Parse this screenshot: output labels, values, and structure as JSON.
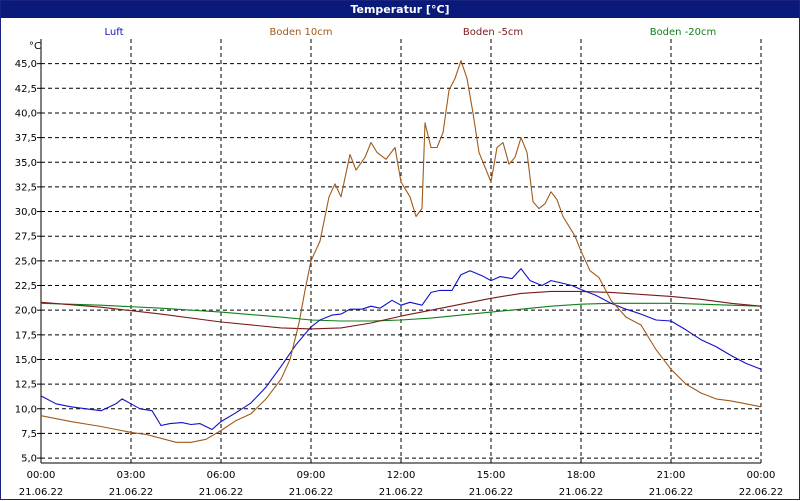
{
  "window": {
    "title": "Temperatur [°C]"
  },
  "chart_data": {
    "type": "line",
    "title": "Temperatur [°C]",
    "ylabel": "°C",
    "xlabel": "",
    "ylim": [
      4.5,
      47.5
    ],
    "xlim": [
      0,
      24
    ],
    "grid": true,
    "legend_position": "top",
    "y_ticks": [
      "5,0",
      "7,5",
      "10,0",
      "12,5",
      "15,0",
      "17,5",
      "20,0",
      "22,5",
      "25,0",
      "27,5",
      "30,0",
      "32,5",
      "35,0",
      "37,5",
      "40,0",
      "42,5",
      "45,0"
    ],
    "x_ticks": [
      {
        "time": "00:00",
        "date": "21.06.22"
      },
      {
        "time": "03:00",
        "date": "21.06.22"
      },
      {
        "time": "06:00",
        "date": "21.06.22"
      },
      {
        "time": "09:00",
        "date": "21.06.22"
      },
      {
        "time": "12:00",
        "date": "21.06.22"
      },
      {
        "time": "15:00",
        "date": "21.06.22"
      },
      {
        "time": "18:00",
        "date": "21.06.22"
      },
      {
        "time": "21:00",
        "date": "21.06.22"
      },
      {
        "time": "00:00",
        "date": "22.06.22"
      }
    ],
    "series": [
      {
        "name": "Luft",
        "color": "#1010c8",
        "x": [
          0,
          0.5,
          1,
          1.5,
          2,
          2.5,
          2.7,
          3,
          3.3,
          3.7,
          4,
          4.3,
          4.7,
          5,
          5.3,
          5.7,
          6,
          6.5,
          7,
          7.5,
          8,
          8.5,
          9,
          9.3,
          9.7,
          10,
          10.3,
          10.7,
          11,
          11.3,
          11.7,
          12,
          12.3,
          12.7,
          13,
          13.3,
          13.7,
          14,
          14.3,
          14.7,
          15,
          15.3,
          15.7,
          16,
          16.3,
          16.7,
          17,
          17.3,
          17.7,
          18,
          18.5,
          19,
          19.5,
          20,
          20.5,
          21,
          21.5,
          22,
          22.5,
          23,
          23.5,
          24
        ],
        "y": [
          11.3,
          10.5,
          10.2,
          10,
          9.8,
          10.5,
          11,
          10.5,
          10,
          9.8,
          8.3,
          8.5,
          8.6,
          8.4,
          8.5,
          7.9,
          8.7,
          9.6,
          10.6,
          12.2,
          14.3,
          16.5,
          18.3,
          19,
          19.5,
          19.6,
          20.1,
          20.1,
          20.4,
          20.2,
          21,
          20.5,
          20.8,
          20.5,
          21.8,
          22,
          22,
          23.6,
          24,
          23.5,
          23,
          23.4,
          23.2,
          24.2,
          23,
          22.5,
          23,
          22.8,
          22.5,
          22.1,
          21.5,
          20.7,
          20.1,
          19.6,
          19,
          18.9,
          18,
          17,
          16.3,
          15.4,
          14.6,
          14
        ]
      },
      {
        "name": "Boden 10cm",
        "color": "#a05a1a",
        "x": [
          0,
          1,
          2,
          3,
          3.5,
          4,
          4.5,
          5,
          5.5,
          6,
          6.5,
          7,
          7.5,
          8,
          8.3,
          8.6,
          8.8,
          9,
          9.3,
          9.6,
          9.8,
          10,
          10.3,
          10.5,
          10.8,
          11,
          11.2,
          11.5,
          11.8,
          12,
          12.3,
          12.5,
          12.7,
          12.8,
          13,
          13.2,
          13.4,
          13.6,
          13.8,
          14,
          14.2,
          14.4,
          14.6,
          14.8,
          15,
          15.2,
          15.4,
          15.6,
          15.8,
          16,
          16.2,
          16.4,
          16.6,
          16.8,
          17,
          17.2,
          17.4,
          17.6,
          17.8,
          18,
          18.3,
          18.6,
          19,
          19.5,
          20,
          20.5,
          21,
          21.5,
          22,
          22.5,
          23,
          23.5,
          24
        ],
        "y": [
          9.3,
          8.7,
          8.2,
          7.6,
          7.4,
          7,
          6.6,
          6.6,
          6.9,
          7.8,
          8.8,
          9.5,
          11,
          13,
          15,
          18.7,
          22,
          25,
          27,
          31.5,
          32.8,
          31.5,
          35.8,
          34.2,
          35.5,
          37,
          36,
          35.3,
          36.5,
          33,
          31.5,
          29.5,
          30.3,
          39,
          36.5,
          36.5,
          38,
          42.3,
          43.5,
          45.3,
          43.5,
          40,
          36,
          34.5,
          33,
          36.5,
          37,
          34.8,
          35.5,
          37.5,
          36,
          31,
          30.3,
          30.8,
          32,
          31.2,
          29.5,
          28.5,
          27.5,
          26,
          24,
          23.3,
          21,
          19.3,
          18.5,
          16,
          14,
          12.5,
          11.6,
          11,
          10.8,
          10.5,
          10.2
        ]
      },
      {
        "name": "Boden -5cm",
        "color": "#7a1a1a",
        "x": [
          0,
          2,
          4,
          6,
          8,
          9,
          10,
          11,
          12,
          13,
          14,
          15,
          16,
          17,
          18,
          19,
          20,
          21,
          22,
          23,
          24
        ],
        "y": [
          20.8,
          20.3,
          19.6,
          18.8,
          18.2,
          18.1,
          18.2,
          18.7,
          19.4,
          20.0,
          20.6,
          21.2,
          21.7,
          21.9,
          21.9,
          21.8,
          21.6,
          21.4,
          21.1,
          20.7,
          20.4
        ]
      },
      {
        "name": "Boden -20cm",
        "color": "#10801a",
        "x": [
          0,
          2,
          4,
          6,
          8,
          9,
          10,
          11,
          12,
          13,
          14,
          15,
          16,
          17,
          18,
          19,
          20,
          21,
          22,
          23,
          24
        ],
        "y": [
          20.7,
          20.5,
          20.2,
          19.8,
          19.3,
          19.0,
          18.9,
          18.9,
          19.0,
          19.2,
          19.5,
          19.8,
          20.1,
          20.4,
          20.6,
          20.7,
          20.7,
          20.7,
          20.6,
          20.5,
          20.4
        ]
      }
    ]
  }
}
